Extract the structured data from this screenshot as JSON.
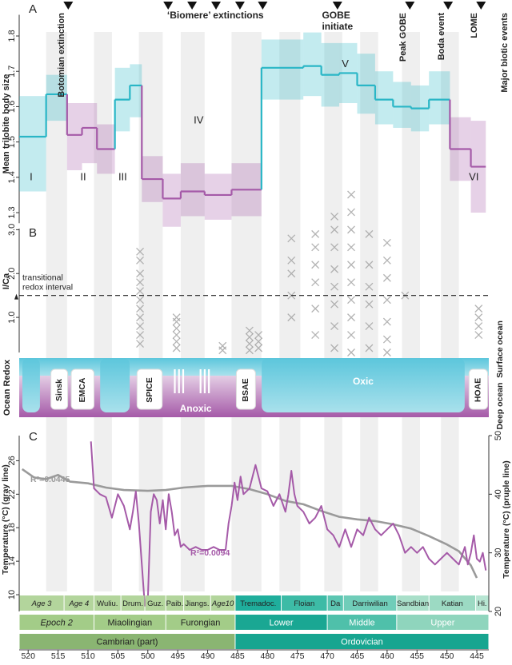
{
  "chart_data": [
    {
      "type": "step",
      "panel": "A",
      "y_label": "Mean trilobite body size",
      "ylim": [
        1.27,
        1.86
      ],
      "yticks": [
        1.3,
        1.4,
        1.5,
        1.6,
        1.7,
        1.8
      ],
      "segments": {
        "start": [
          521.5,
          517,
          513.5,
          511,
          508.5,
          505.5,
          503,
          501,
          497.5,
          494.5,
          490.5,
          486,
          481,
          474,
          471,
          468,
          465,
          462,
          459,
          456,
          453,
          449.5,
          446
        ],
        "end": [
          517,
          513.5,
          511,
          508.5,
          505.5,
          503,
          501,
          497.5,
          494.5,
          490.5,
          486,
          481,
          474,
          471,
          468,
          465,
          462,
          459,
          456,
          453,
          449.5,
          446,
          443.5
        ],
        "values": [
          1.515,
          1.635,
          1.52,
          1.54,
          1.48,
          1.62,
          1.66,
          1.395,
          1.34,
          1.36,
          1.35,
          1.365,
          1.71,
          1.715,
          1.69,
          1.695,
          1.66,
          1.62,
          1.6,
          1.595,
          1.62,
          1.48,
          1.43
        ],
        "low": [
          1.36,
          1.56,
          1.42,
          1.44,
          1.41,
          1.53,
          1.57,
          1.33,
          1.26,
          1.29,
          1.28,
          1.29,
          1.62,
          1.63,
          1.6,
          1.61,
          1.58,
          1.55,
          1.54,
          1.53,
          1.55,
          1.39,
          1.3
        ],
        "high": [
          1.63,
          1.69,
          1.61,
          1.61,
          1.55,
          1.71,
          1.72,
          1.46,
          1.41,
          1.44,
          1.41,
          1.44,
          1.79,
          1.81,
          1.78,
          1.78,
          1.75,
          1.7,
          1.67,
          1.66,
          1.7,
          1.57,
          1.56
        ],
        "colors": [
          "#29b6c6",
          "#29b6c6",
          "#a55aa8",
          "#a55aa8",
          "#a55aa8",
          "#29b6c6",
          "#29b6c6",
          "#a55aa8",
          "#a55aa8",
          "#a55aa8",
          "#a55aa8",
          "#a55aa8",
          "#29b6c6",
          "#29b6c6",
          "#29b6c6",
          "#29b6c6",
          "#29b6c6",
          "#29b6c6",
          "#29b6c6",
          "#29b6c6",
          "#29b6c6",
          "#a55aa8",
          "#a55aa8"
        ]
      },
      "phase_labels": [
        "I",
        "II",
        "III",
        "IV",
        "V",
        "VI"
      ],
      "events_label": "Major biotic events",
      "events": [
        {
          "label": "Botomian extinction",
          "times": [
            513.3
          ]
        },
        {
          "label": "‘Biomere’ extinctions",
          "times": [
            496.6,
            492.6,
            488.6,
            484.6,
            480.8
          ]
        },
        {
          "label": "GOBE initiate",
          "times": [
            468.3
          ]
        },
        {
          "label": "Peak GOBE",
          "times": [
            456.2
          ]
        },
        {
          "label": "Boda event",
          "times": [
            449.8
          ]
        },
        {
          "label": "LOME",
          "times": [
            444.3
          ]
        }
      ]
    },
    {
      "type": "scatter",
      "panel": "B",
      "y_label": "I/Ca",
      "color": "#a0a0a0",
      "ylim": [
        0.2,
        3.9
      ],
      "yticks": [
        {
          "value": 1,
          "label": "1.0"
        },
        {
          "value": 2,
          "label": "2.0"
        },
        {
          "value": 3,
          "label": "3.0"
        }
      ],
      "threshold": 1.5,
      "threshold_label": "transitional redox interval",
      "x": [
        501.3,
        501.3,
        501.3,
        501.3,
        501.3,
        501.3,
        501.3,
        501.3,
        501.3,
        501.3,
        501.3,
        495.2,
        495.2,
        495.2,
        495.2,
        495.2,
        495.2,
        487.5,
        487.5,
        483,
        483,
        483,
        483,
        481.5,
        481.5,
        481.5,
        476,
        476,
        476,
        476,
        476,
        472,
        472,
        472,
        472,
        472,
        472,
        468.8,
        468.8,
        468.8,
        468.8,
        468.8,
        468.8,
        468.8,
        468.8,
        466,
        466,
        466,
        466,
        466,
        466,
        466,
        466,
        466,
        466,
        463,
        463,
        463,
        463,
        463,
        463,
        460,
        460,
        460,
        460,
        460,
        460,
        460,
        457,
        444.7,
        444.7,
        444.7,
        444.7
      ],
      "y": [
        0.4,
        0.6,
        0.8,
        1.0,
        1.2,
        1.4,
        1.6,
        1.8,
        2.0,
        2.3,
        2.5,
        0.3,
        0.45,
        0.6,
        0.75,
        0.9,
        1.0,
        0.25,
        0.35,
        0.25,
        0.4,
        0.55,
        0.7,
        0.3,
        0.45,
        0.6,
        1.0,
        1.5,
        2.0,
        2.3,
        2.8,
        0.6,
        1.2,
        1.8,
        2.2,
        2.6,
        2.9,
        0.3,
        0.8,
        1.3,
        1.7,
        2.1,
        2.6,
        3.0,
        3.3,
        0.2,
        0.6,
        1.0,
        1.4,
        1.8,
        2.2,
        2.6,
        3.0,
        3.4,
        3.8,
        0.3,
        0.8,
        1.3,
        1.7,
        2.2,
        2.9,
        0.2,
        0.5,
        0.9,
        1.4,
        1.9,
        2.3,
        2.7,
        1.5,
        0.6,
        0.8,
        1.0,
        1.2
      ]
    },
    {
      "type": "redox",
      "y_label": "Ocean Redox",
      "top_label": "Surface ocean",
      "bottom_label": "Deep ocean",
      "labels": [
        "Sinsk",
        "EMCA",
        "SPICE",
        "Anoxic",
        "BSAE",
        "Oxic",
        "HOAE"
      ]
    },
    {
      "type": "line",
      "panel": "C",
      "xlim": [
        521.5,
        443
      ],
      "xticks": [
        520,
        515,
        510,
        505,
        500,
        495,
        490,
        485,
        480,
        475,
        470,
        465,
        460,
        455,
        450,
        445
      ],
      "y_label": "Temperature (°C) (gray line)",
      "y2_label": "Temperature (°C) (pruple line)",
      "ylim": [
        8,
        29
      ],
      "yticks": [
        10,
        14,
        18,
        22,
        26
      ],
      "y2lim": [
        20,
        50
      ],
      "y2ticks": [
        20,
        30,
        40,
        50
      ],
      "series": [
        {
          "color": "#9a9a9a",
          "r2_label": "R²=0.0445",
          "x": [
            521,
            519,
            517,
            515,
            513,
            510,
            507,
            504,
            500,
            497,
            494,
            490,
            486,
            483,
            480,
            477,
            474,
            471,
            468,
            465,
            462,
            459,
            456,
            453,
            450,
            448,
            446,
            445
          ],
          "values": [
            25,
            24,
            23.8,
            24.3,
            23.5,
            23.3,
            22.8,
            22.5,
            22.4,
            22.5,
            22.8,
            23,
            23,
            22.6,
            22,
            21.2,
            20.8,
            20,
            19.3,
            19,
            18.8,
            18.4,
            17.9,
            17,
            16,
            15.2,
            13.5,
            12
          ]
        },
        {
          "color": "#a55aa8",
          "axis": "y2",
          "r2_label": "R²=0.0094",
          "x": [
            509.5,
            509,
            508,
            507,
            506,
            505,
            504,
            503,
            502.5,
            502,
            501.5,
            501,
            500.5,
            500,
            499.5,
            499,
            498.5,
            498,
            497.5,
            497,
            496.5,
            496,
            495.5,
            495,
            494.5,
            494,
            493,
            492,
            491,
            490,
            489,
            488,
            487,
            486.5,
            486,
            485.5,
            485,
            484.5,
            484,
            483,
            482,
            481,
            480,
            479,
            478,
            477,
            476.5,
            476,
            475.5,
            475,
            474,
            473,
            472,
            471,
            470,
            469,
            468,
            467,
            466,
            465,
            464,
            463,
            462,
            461,
            460,
            459,
            458,
            457,
            456,
            455,
            454,
            453,
            452,
            451,
            450,
            449,
            448,
            447,
            446.5,
            446,
            445.5,
            445,
            444.5,
            444,
            443.5
          ],
          "values": [
            49,
            41,
            40,
            39.5,
            36,
            40,
            38,
            34,
            37,
            40.5,
            35,
            28,
            21,
            22,
            37,
            40,
            39,
            35,
            39,
            34,
            40,
            37,
            33,
            34,
            31,
            31.5,
            30.5,
            31,
            30.5,
            30.5,
            31,
            30.5,
            30.5,
            35,
            38,
            42,
            39,
            43,
            40,
            41,
            45,
            41,
            40.5,
            38,
            40,
            37,
            40,
            44,
            40,
            38,
            37,
            35,
            36,
            38,
            34,
            33,
            31,
            34,
            31,
            34,
            33,
            36,
            34,
            33,
            34,
            35,
            33,
            30,
            31,
            30,
            31,
            29,
            28,
            29,
            30,
            29,
            28,
            31,
            28,
            30,
            33,
            29,
            28.5,
            30,
            27
          ]
        }
      ]
    },
    {
      "type": "timescale",
      "rows": [
        [
          {
            "label": "Age 3",
            "start": 521.5,
            "end": 514,
            "color": "#b3d59c",
            "italic": true
          },
          {
            "label": "Age 4",
            "start": 514,
            "end": 509,
            "color": "#b3d59c",
            "italic": true
          },
          {
            "label": "Wuliu.",
            "start": 509,
            "end": 504.5,
            "color": "#b3d59c"
          },
          {
            "label": "Drum.",
            "start": 504.5,
            "end": 500.5,
            "color": "#b3d59c"
          },
          {
            "label": "Guz.",
            "start": 500.5,
            "end": 497,
            "color": "#b3d59c"
          },
          {
            "label": "Paib.",
            "start": 497,
            "end": 494,
            "color": "#b3d59c"
          },
          {
            "label": "Jiangs.",
            "start": 494,
            "end": 489.5,
            "color": "#b3d59c"
          },
          {
            "label": "Age10",
            "start": 489.5,
            "end": 485.4,
            "color": "#b3d59c",
            "italic": true
          },
          {
            "label": "Tremadoc.",
            "start": 485.4,
            "end": 477.7,
            "color": "#1fae9c"
          },
          {
            "label": "Floian",
            "start": 477.7,
            "end": 470,
            "color": "#3dbba6"
          },
          {
            "label": "Da",
            "start": 470,
            "end": 467.3,
            "color": "#5cc6b2"
          },
          {
            "label": "Darriwilian",
            "start": 467.3,
            "end": 458.4,
            "color": "#70cdb9"
          },
          {
            "label": "Sandbian",
            "start": 458.4,
            "end": 453,
            "color": "#a9dfc9"
          },
          {
            "label": "Katian",
            "start": 453,
            "end": 445.2,
            "color": "#9cdac3"
          },
          {
            "label": "Hi.",
            "start": 445.2,
            "end": 443,
            "color": "#b8e6d3"
          }
        ],
        [
          {
            "label": "Epoch 2",
            "start": 521.5,
            "end": 509,
            "color": "#a3cc88",
            "italic": true
          },
          {
            "label": "Miaolingian",
            "start": 509,
            "end": 497,
            "color": "#a3cc88"
          },
          {
            "label": "Furongian",
            "start": 497,
            "end": 485.4,
            "color": "#a3cc88"
          },
          {
            "label": "Lower",
            "start": 485.4,
            "end": 470,
            "color": "#1aa793"
          },
          {
            "label": "Middle",
            "start": 470,
            "end": 458.4,
            "color": "#4fc0aa"
          },
          {
            "label": "Upper",
            "start": 458.4,
            "end": 443,
            "color": "#8fd5bd"
          }
        ],
        [
          {
            "label": "Cambrian (part)",
            "start": 521.5,
            "end": 485.4,
            "color": "#8ab572"
          },
          {
            "label": "Ordovician",
            "start": 485.4,
            "end": 443,
            "color": "#17a590"
          }
        ]
      ]
    }
  ]
}
